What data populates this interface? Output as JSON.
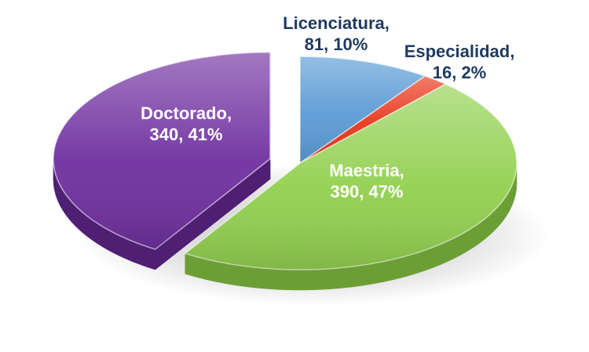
{
  "chart_data": {
    "type": "pie",
    "title": "",
    "style": "3d-exploded",
    "slices": [
      {
        "name": "Licenciatura",
        "value": 81,
        "percent": "10%",
        "color": "#5b9bd5",
        "side_color": "#3f77aa",
        "label_color": "#1f3a5f",
        "explode": 0,
        "label_line1": "Licenciatura,",
        "label_line2": "81, 10%"
      },
      {
        "name": "Especialidad",
        "value": 16,
        "percent": "2%",
        "color": "#e8361a",
        "side_color": "#b0200b",
        "label_color": "#1f3a5f",
        "explode": 0,
        "label_line1": "Especialidad,",
        "label_line2": "16, 2%"
      },
      {
        "name": "Maestria",
        "value": 390,
        "percent": "47%",
        "color": "#92d050",
        "side_color": "#6c9e36",
        "label_color": "#ffffff",
        "explode": 0,
        "label_line1": "Maestria,",
        "label_line2": "390, 47%"
      },
      {
        "name": "Doctorado",
        "value": 340,
        "percent": "41%",
        "color": "#7030a0",
        "side_color": "#4f1f74",
        "label_color": "#ffffff",
        "explode": 1,
        "label_line1": "Doctorado,",
        "label_line2": "340, 41%"
      }
    ]
  }
}
